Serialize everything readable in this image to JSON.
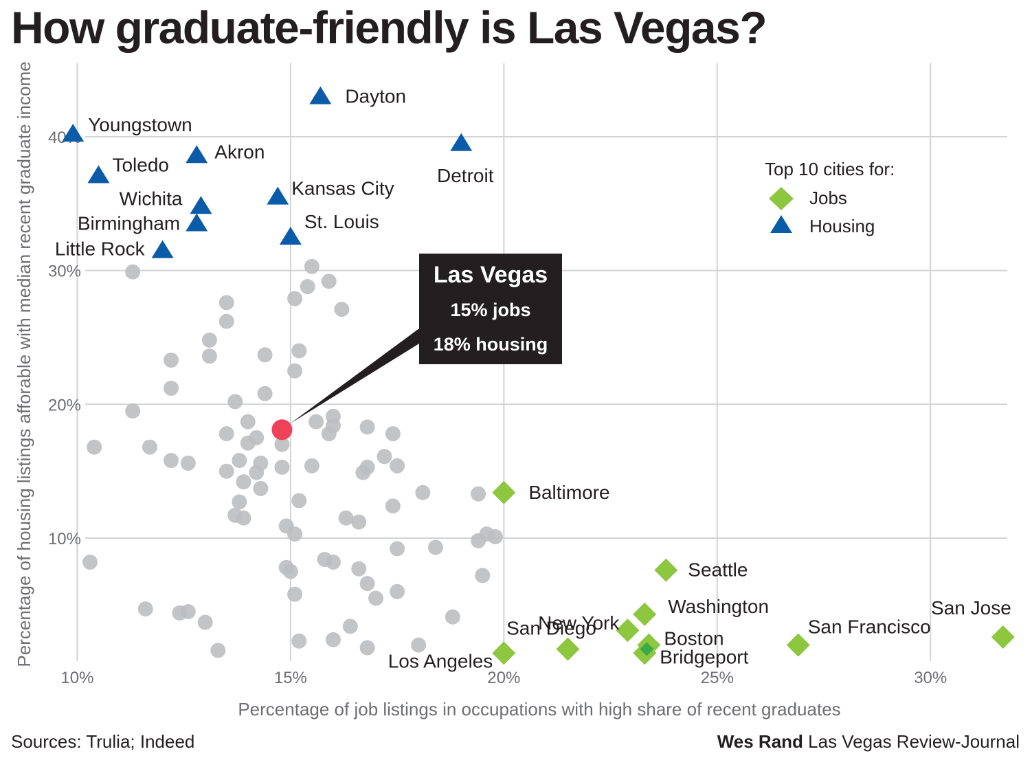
{
  "colors": {
    "background": "#ffffff",
    "grid": "#d1d3d4",
    "other": "#bcbec0",
    "housing": "#0a5ca8",
    "jobs": "#8dc63f",
    "jobs_overlap": "#3aaa4a",
    "highlight": "#ef4158",
    "callout": "#231f20"
  },
  "chart_data": {
    "type": "scatter",
    "title": "How graduate-friendly is Las Vegas?",
    "xlabel": "Percentage of job listings in occupations with high share of recent graduates",
    "ylabel": "Percentage of housing listings afforable with median recent graduate income",
    "xlim": [
      9.8,
      31.8
    ],
    "ylim": [
      0.8,
      45.5
    ],
    "x_ticks": [
      10,
      15,
      20,
      25,
      30
    ],
    "y_ticks": [
      10,
      20,
      30,
      40
    ],
    "x_tick_labels": [
      "10%",
      "15%",
      "20%",
      "25%",
      "30%"
    ],
    "y_tick_labels": [
      "10%",
      "20%",
      "30%",
      "40%"
    ],
    "grid": true,
    "legend": {
      "title": "Top 10 cities for:",
      "position": "top-right",
      "entries": [
        {
          "label": "Jobs",
          "marker": "diamond",
          "color": "#8dc63f"
        },
        {
          "label": "Housing",
          "marker": "triangle",
          "color": "#0a5ca8"
        }
      ]
    },
    "highlight": {
      "name": "Las Vegas",
      "x": 14.8,
      "y": 18.1,
      "line1": "15% jobs",
      "line2": "18% housing",
      "color": "#ef4158"
    },
    "housing": [
      {
        "name": "Dayton",
        "x": 15.7,
        "y": 43.0
      },
      {
        "name": "Youngstown",
        "x": 9.9,
        "y": 40.2
      },
      {
        "name": "Detroit",
        "x": 19.0,
        "y": 39.5
      },
      {
        "name": "Akron",
        "x": 12.8,
        "y": 38.6
      },
      {
        "name": "Toledo",
        "x": 10.5,
        "y": 37.1
      },
      {
        "name": "Kansas City",
        "x": 14.7,
        "y": 35.5
      },
      {
        "name": "Wichita",
        "x": 12.9,
        "y": 34.8
      },
      {
        "name": "Birmingham",
        "x": 12.8,
        "y": 33.5
      },
      {
        "name": "St. Louis",
        "x": 15.0,
        "y": 32.5
      },
      {
        "name": "Little Rock",
        "x": 12.0,
        "y": 31.5
      }
    ],
    "jobs": [
      {
        "name": "Baltimore",
        "x": 20.0,
        "y": 13.4
      },
      {
        "name": "Seattle",
        "x": 23.8,
        "y": 7.6
      },
      {
        "name": "Washington",
        "x": 23.3,
        "y": 4.3
      },
      {
        "name": "New York",
        "x": 22.9,
        "y": 3.1
      },
      {
        "name": "Boston",
        "x": 23.4,
        "y": 2.0
      },
      {
        "name": "Bridgeport",
        "x": 23.3,
        "y": 1.4
      },
      {
        "name": "San Diego",
        "x": 21.5,
        "y": 1.7
      },
      {
        "name": "Los Angeles",
        "x": 20.0,
        "y": 1.4
      },
      {
        "name": "San Francisco",
        "x": 26.9,
        "y": 2.0
      },
      {
        "name": "San Jose",
        "x": 31.7,
        "y": 2.6
      }
    ],
    "others": [
      [
        11.3,
        29.9
      ],
      [
        15.5,
        30.3
      ],
      [
        15.4,
        28.8
      ],
      [
        15.9,
        29.2
      ],
      [
        15.1,
        27.9
      ],
      [
        16.2,
        27.1
      ],
      [
        13.5,
        27.6
      ],
      [
        13.5,
        26.2
      ],
      [
        13.1,
        24.8
      ],
      [
        13.1,
        23.6
      ],
      [
        12.2,
        23.3
      ],
      [
        14.4,
        23.7
      ],
      [
        15.2,
        24.0
      ],
      [
        15.1,
        22.5
      ],
      [
        12.2,
        21.2
      ],
      [
        14.4,
        20.8
      ],
      [
        13.7,
        20.2
      ],
      [
        11.3,
        19.5
      ],
      [
        14.0,
        18.7
      ],
      [
        14.0,
        17.1
      ],
      [
        14.2,
        17.5
      ],
      [
        13.5,
        17.8
      ],
      [
        14.8,
        17.0
      ],
      [
        15.6,
        18.7
      ],
      [
        16.0,
        19.1
      ],
      [
        16.0,
        18.4
      ],
      [
        15.9,
        17.8
      ],
      [
        16.8,
        18.3
      ],
      [
        17.4,
        17.8
      ],
      [
        10.4,
        16.8
      ],
      [
        11.7,
        16.8
      ],
      [
        12.2,
        15.8
      ],
      [
        12.6,
        15.6
      ],
      [
        13.8,
        15.8
      ],
      [
        14.3,
        15.6
      ],
      [
        13.5,
        15.0
      ],
      [
        13.9,
        14.2
      ],
      [
        14.2,
        14.9
      ],
      [
        14.8,
        15.3
      ],
      [
        15.5,
        15.4
      ],
      [
        16.7,
        14.9
      ],
      [
        16.8,
        15.3
      ],
      [
        17.2,
        16.1
      ],
      [
        17.5,
        15.4
      ],
      [
        14.3,
        13.7
      ],
      [
        18.1,
        13.4
      ],
      [
        19.4,
        13.3
      ],
      [
        13.8,
        12.7
      ],
      [
        15.2,
        12.8
      ],
      [
        17.4,
        12.4
      ],
      [
        13.7,
        11.7
      ],
      [
        13.9,
        11.5
      ],
      [
        16.3,
        11.5
      ],
      [
        16.6,
        11.2
      ],
      [
        14.9,
        10.9
      ],
      [
        15.1,
        10.3
      ],
      [
        19.4,
        9.8
      ],
      [
        19.6,
        10.3
      ],
      [
        19.8,
        10.1
      ],
      [
        10.3,
        8.2
      ],
      [
        15.8,
        8.4
      ],
      [
        16.0,
        8.2
      ],
      [
        17.5,
        9.2
      ],
      [
        18.4,
        9.3
      ],
      [
        14.9,
        7.8
      ],
      [
        15.0,
        7.5
      ],
      [
        16.6,
        7.7
      ],
      [
        16.8,
        6.6
      ],
      [
        19.5,
        7.2
      ],
      [
        15.1,
        5.8
      ],
      [
        17.0,
        5.5
      ],
      [
        17.5,
        6.0
      ],
      [
        11.6,
        4.7
      ],
      [
        12.4,
        4.4
      ],
      [
        12.6,
        4.5
      ],
      [
        13.0,
        3.7
      ],
      [
        18.8,
        4.1
      ],
      [
        16.4,
        3.4
      ],
      [
        15.2,
        2.3
      ],
      [
        16.0,
        2.4
      ],
      [
        18.0,
        2.0
      ],
      [
        16.8,
        1.8
      ],
      [
        13.3,
        1.6
      ]
    ]
  },
  "footer": {
    "sources": "Sources: Trulia; Indeed",
    "author": "Wes Rand",
    "publication": "Las Vegas Review-Journal"
  }
}
